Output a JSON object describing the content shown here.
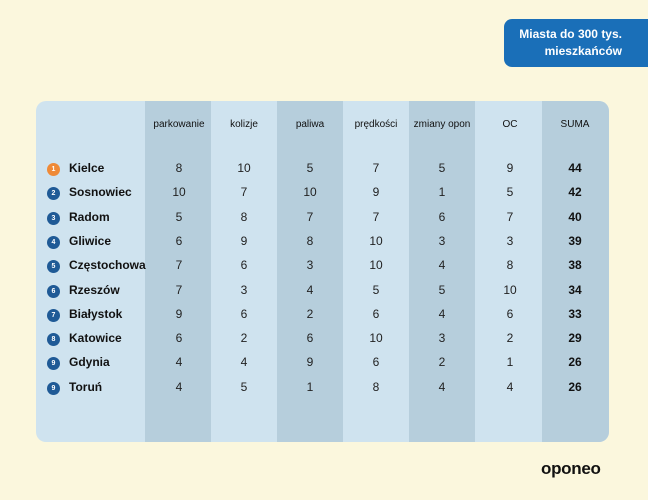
{
  "header_tag": {
    "line1": "Miasta do 300 tys.",
    "line2": "mieszkańców"
  },
  "table": {
    "columns": [
      "parkowanie",
      "kolizje",
      "paliwa",
      "prędkości",
      "zmiany opon",
      "OC",
      "SUMA"
    ],
    "rows": [
      {
        "rank": "1",
        "city": "Kielce",
        "values": [
          "8",
          "10",
          "5",
          "7",
          "5",
          "9",
          "44"
        ]
      },
      {
        "rank": "2",
        "city": "Sosnowiec",
        "values": [
          "10",
          "7",
          "10",
          "9",
          "1",
          "5",
          "42"
        ]
      },
      {
        "rank": "3",
        "city": "Radom",
        "values": [
          "5",
          "8",
          "7",
          "7",
          "6",
          "7",
          "40"
        ]
      },
      {
        "rank": "4",
        "city": "Gliwice",
        "values": [
          "6",
          "9",
          "8",
          "10",
          "3",
          "3",
          "39"
        ]
      },
      {
        "rank": "5",
        "city": "Częstochowa",
        "values": [
          "7",
          "6",
          "3",
          "10",
          "4",
          "8",
          "38"
        ]
      },
      {
        "rank": "6",
        "city": "Rzeszów",
        "values": [
          "7",
          "3",
          "4",
          "5",
          "5",
          "10",
          "34"
        ]
      },
      {
        "rank": "7",
        "city": "Białystok",
        "values": [
          "9",
          "6",
          "2",
          "6",
          "4",
          "6",
          "33"
        ]
      },
      {
        "rank": "8",
        "city": "Katowice",
        "values": [
          "6",
          "2",
          "6",
          "10",
          "3",
          "2",
          "29"
        ]
      },
      {
        "rank": "9",
        "city": "Gdynia",
        "values": [
          "4",
          "4",
          "9",
          "6",
          "2",
          "1",
          "26"
        ]
      },
      {
        "rank": "9",
        "city": "Toruń",
        "values": [
          "4",
          "5",
          "1",
          "8",
          "4",
          "4",
          "26"
        ]
      }
    ]
  },
  "colors": {
    "accent": "#1a6fb8",
    "badge": "#1f5a96",
    "badge_first": "#ef8a37",
    "table_bg": "#cfe3ef",
    "shade": "#b6cedc",
    "page_bg": "#fbf7dd"
  },
  "logo": {
    "text": "oponeo"
  }
}
